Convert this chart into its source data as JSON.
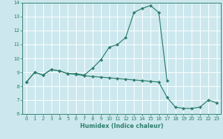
{
  "xlabel": "Humidex (Indice chaleur)",
  "line_color": "#2d7d6b",
  "bg_color": "#cce8ee",
  "grid_color": "#ffffff",
  "upper_x": [
    0,
    1,
    2,
    3,
    4,
    5,
    6,
    7,
    8,
    9,
    10,
    11,
    12,
    13,
    14,
    15,
    16,
    17
  ],
  "upper_y": [
    8.3,
    9.0,
    8.8,
    9.2,
    9.1,
    8.9,
    8.9,
    8.8,
    9.3,
    9.9,
    10.8,
    11.0,
    11.5,
    13.3,
    13.6,
    13.8,
    13.3,
    8.4
  ],
  "lower_x": [
    0,
    1,
    2,
    3,
    4,
    5,
    6,
    7,
    8,
    9,
    10,
    11,
    12,
    13,
    14,
    15,
    16,
    17,
    18,
    19,
    20,
    21,
    22,
    23
  ],
  "lower_y": [
    8.3,
    9.0,
    8.8,
    9.2,
    9.1,
    8.9,
    8.85,
    8.75,
    8.7,
    8.65,
    8.6,
    8.55,
    8.5,
    8.45,
    8.4,
    8.35,
    8.3,
    7.2,
    6.5,
    6.4,
    6.4,
    6.5,
    7.0,
    6.8
  ],
  "ylim": [
    6,
    14
  ],
  "xlim": [
    -0.5,
    23.5
  ],
  "yticks": [
    6,
    7,
    8,
    9,
    10,
    11,
    12,
    13,
    14
  ],
  "xticks": [
    0,
    1,
    2,
    3,
    4,
    5,
    6,
    7,
    8,
    9,
    10,
    11,
    12,
    13,
    14,
    15,
    16,
    17,
    18,
    19,
    20,
    21,
    22,
    23
  ],
  "xlabel_fontsize": 6,
  "tick_fontsize": 5,
  "linewidth": 0.9,
  "markersize": 2.2
}
